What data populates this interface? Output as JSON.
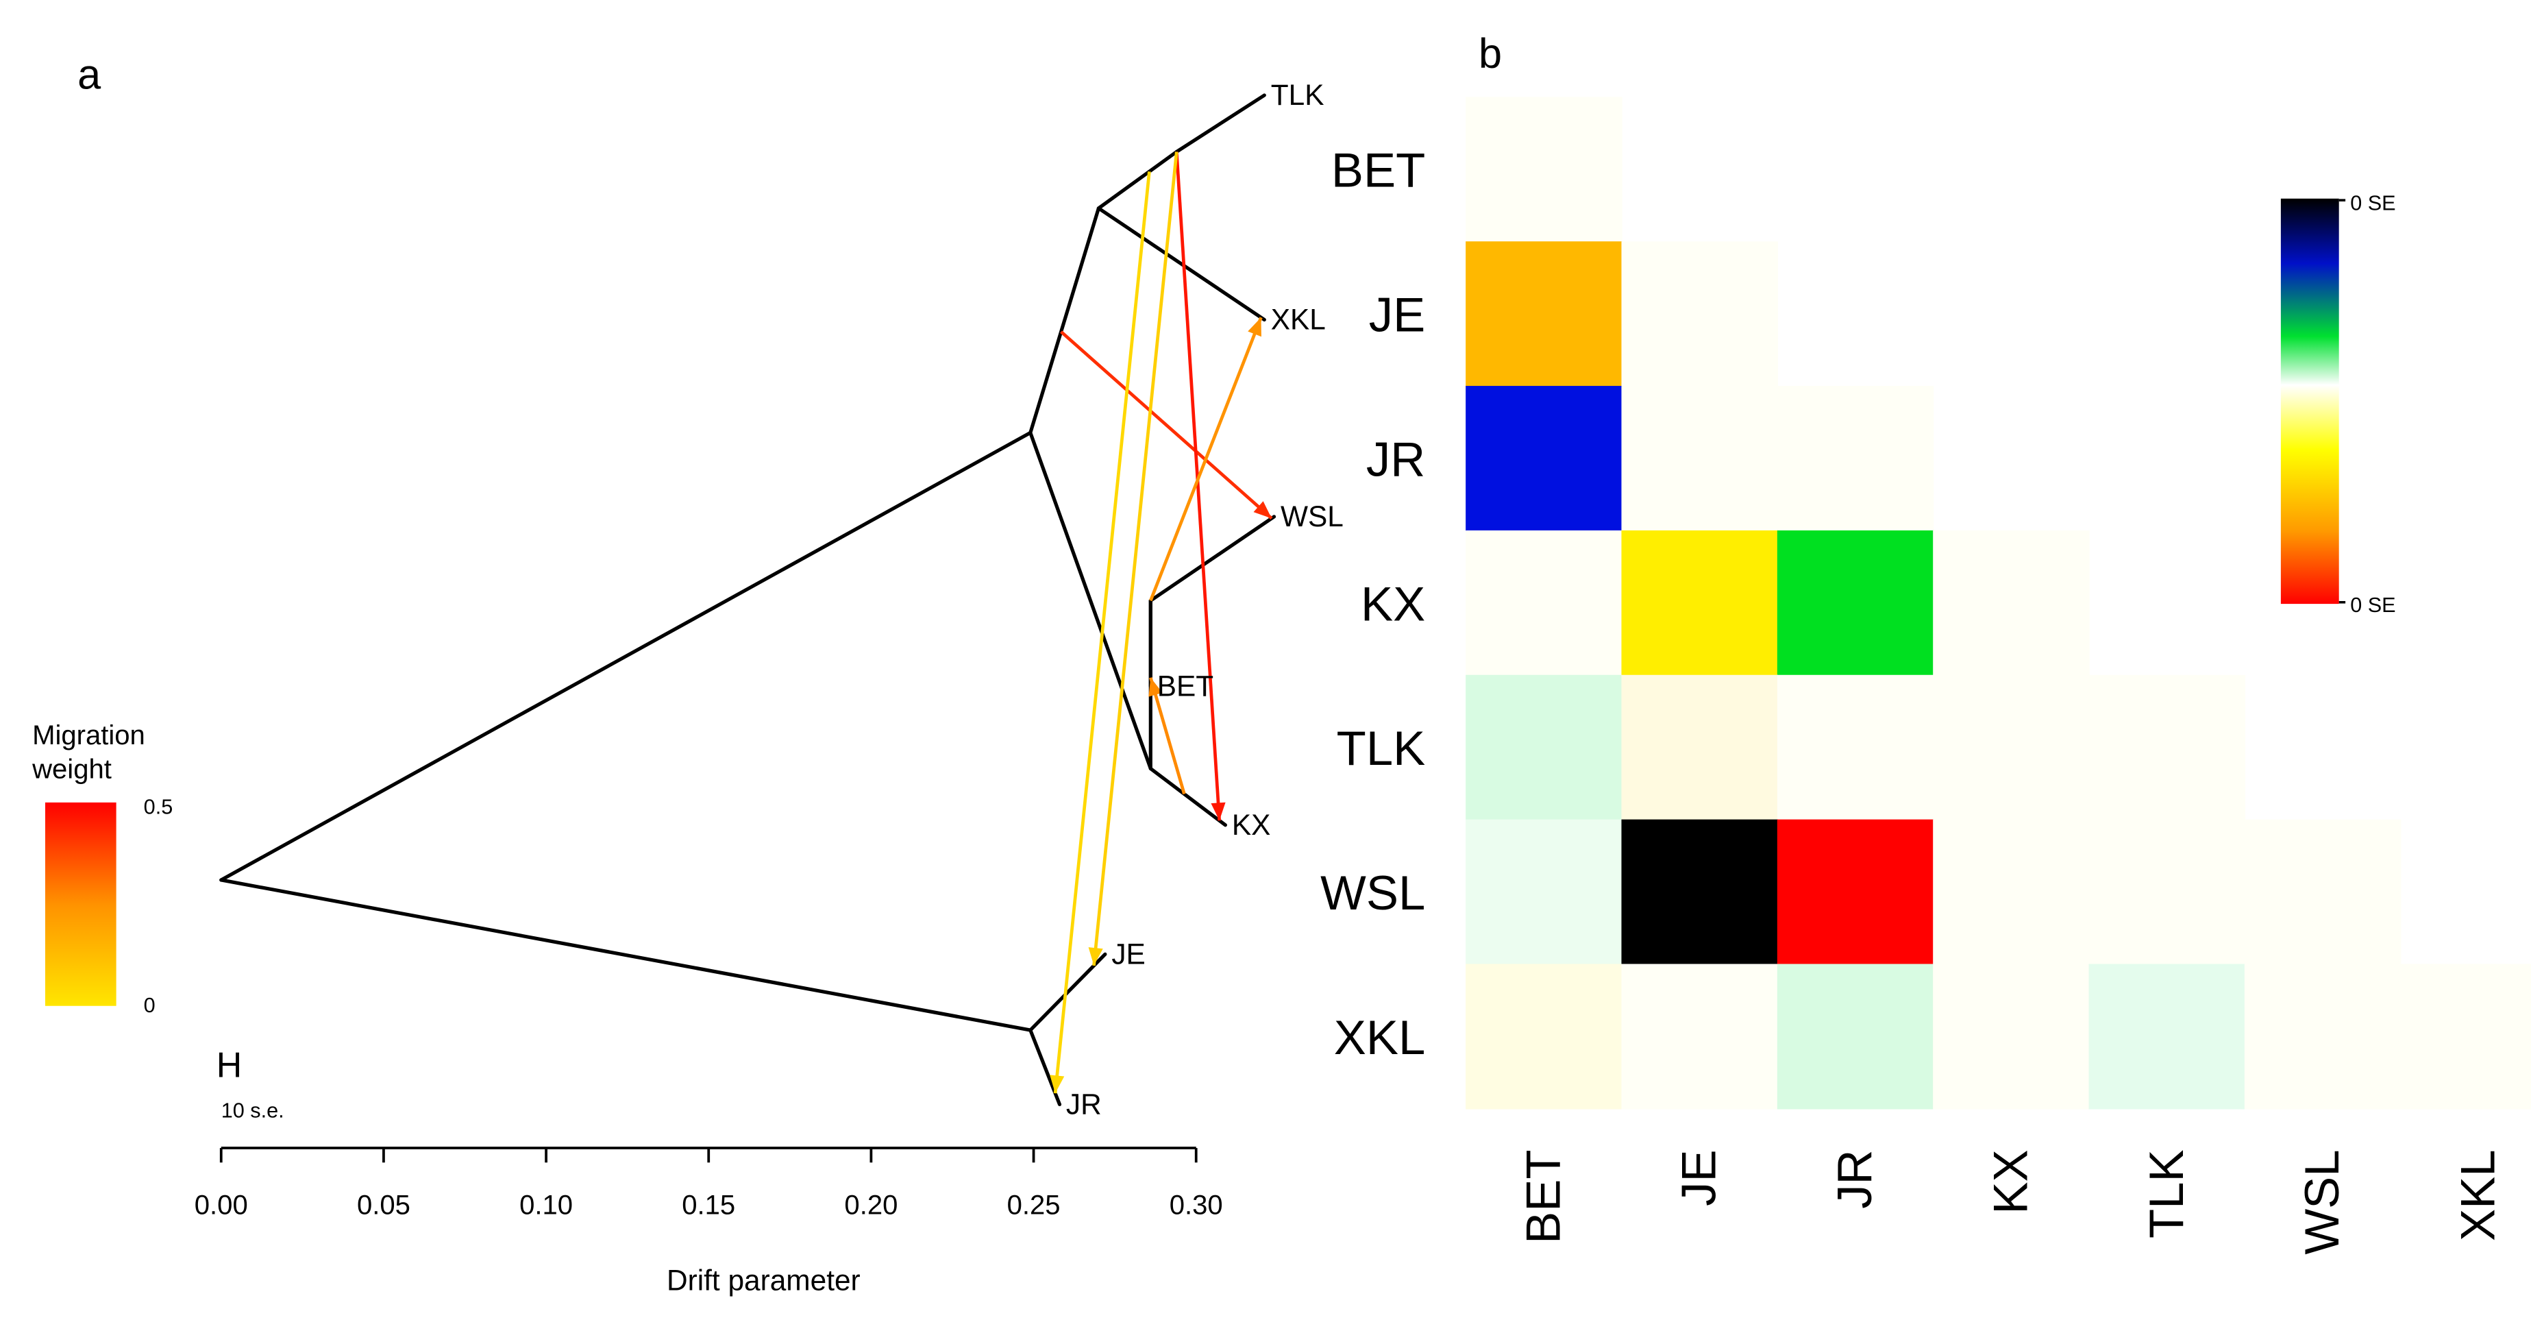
{
  "chart_data": [
    {
      "panel": "a",
      "type": "tree",
      "xlabel": "Drift parameter",
      "x_ticks": [
        "0.00",
        "0.05",
        "0.10",
        "0.15",
        "0.20",
        "0.25",
        "0.30"
      ],
      "xlim": [
        0.0,
        0.31
      ],
      "scale_bar_label": "10 s.e.",
      "scale_bar_glyph": "H",
      "legend": {
        "title_line1": "Migration",
        "title_line2": "weight",
        "max_label": "0.5",
        "min_label": "0",
        "color_low": "#ffd900",
        "color_high": "#ff0000"
      },
      "nodes": [
        {
          "id": "root",
          "x": 0.0,
          "y": 545
        },
        {
          "id": "n1",
          "x": 0.249,
          "y": 268
        },
        {
          "id": "n2",
          "x": 0.27,
          "y": 129
        },
        {
          "id": "n3",
          "x": 0.294,
          "y": 94
        },
        {
          "id": "n4",
          "x": 0.286,
          "y": 476
        },
        {
          "id": "n5",
          "x": 0.286,
          "y": 372
        },
        {
          "id": "n6",
          "x": 0.249,
          "y": 638
        },
        {
          "id": "TLK",
          "x": 0.321,
          "y": 59,
          "label": "TLK",
          "anchor": "end"
        },
        {
          "id": "XKL",
          "x": 0.321,
          "y": 198,
          "label": "XKL",
          "anchor": "end"
        },
        {
          "id": "WSL",
          "x": 0.324,
          "y": 320,
          "label": "WSL",
          "anchor": "end"
        },
        {
          "id": "KX",
          "x": 0.309,
          "y": 511,
          "label": "KX",
          "anchor": "end"
        },
        {
          "id": "BET",
          "x": 0.286,
          "y": 425,
          "label": "BET",
          "anchor": "end"
        },
        {
          "id": "JE",
          "x": 0.272,
          "y": 591,
          "label": "JE",
          "anchor": "end"
        },
        {
          "id": "JR",
          "x": 0.258,
          "y": 684,
          "label": "JR",
          "anchor": "end"
        }
      ],
      "edges": [
        [
          "root",
          "n1"
        ],
        [
          "root",
          "n6"
        ],
        [
          "n1",
          "n2"
        ],
        [
          "n1",
          "n4"
        ],
        [
          "n2",
          "n3"
        ],
        [
          "n2",
          "XKL"
        ],
        [
          "n3",
          "TLK"
        ],
        [
          "n4",
          "n5"
        ],
        [
          "n4",
          "KX"
        ],
        [
          "n5",
          "WSL"
        ],
        [
          "n5",
          "BET"
        ],
        [
          "n6",
          "JE"
        ],
        [
          "n6",
          "JR"
        ]
      ],
      "migrations": [
        {
          "from": [
            "n1",
            "n2",
            0.45
          ],
          "to": [
            "n5",
            "WSL",
            0.98
          ],
          "weight": 0.4
        },
        {
          "from": [
            "n2",
            "n3",
            1.0
          ],
          "to": [
            "n4",
            "KX",
            0.92
          ],
          "weight": 0.45
        },
        {
          "from": [
            "n2",
            "n3",
            1.0
          ],
          "to": [
            "n6",
            "JE",
            0.85
          ],
          "weight": 0.05
        },
        {
          "from": [
            "n2",
            "n3",
            0.65
          ],
          "to": [
            "n6",
            "JR",
            0.85
          ],
          "weight": 0.03
        },
        {
          "from": [
            "n5",
            "WSL",
            0.0
          ],
          "to": [
            "n2",
            "XKL",
            0.98
          ],
          "weight": 0.18
        },
        {
          "from": [
            "n4",
            "KX",
            0.45
          ],
          "to": [
            "n5",
            "BET",
            0.9
          ],
          "weight": 0.2
        }
      ]
    },
    {
      "panel": "b",
      "type": "heatmap",
      "rows": [
        "BET",
        "JE",
        "JR",
        "KX",
        "TLK",
        "WSL",
        "XKL"
      ],
      "cols": [
        "BET",
        "JE",
        "JR",
        "KX",
        "TLK",
        "WSL",
        "XKL"
      ],
      "cells": [
        [
          "#fffff6",
          null,
          null,
          null,
          null,
          null,
          null
        ],
        [
          "#ffb800",
          "#fffff6",
          null,
          null,
          null,
          null,
          null
        ],
        [
          "#0010e0",
          "#fffff6",
          "#fffff6",
          null,
          null,
          null,
          null
        ],
        [
          "#fffff6",
          "#ffee00",
          "#00e020",
          "#fffff6",
          null,
          null,
          null
        ],
        [
          "#d8fbe2",
          "#fffae0",
          "#fffff6",
          "#fffff6",
          "#fffff6",
          null,
          null
        ],
        [
          "#ecfdf0",
          "#000000",
          "#ff0000",
          "#fffff6",
          "#fffff6",
          "#fffff6",
          null
        ],
        [
          "#fffde2",
          "#fffff6",
          "#d8fbe2",
          "#fffff6",
          "#e4fced",
          "#fffff6",
          "#fffff6"
        ]
      ],
      "colorbar": {
        "top_label": "0 SE",
        "bottom_label": "0 SE",
        "stops": [
          "#000000",
          "#0010c8",
          "#00e030",
          "#ffffff",
          "#ffff00",
          "#ff9a00",
          "#ff0000"
        ]
      }
    }
  ],
  "panel_labels": {
    "a": "a",
    "b": "b"
  }
}
